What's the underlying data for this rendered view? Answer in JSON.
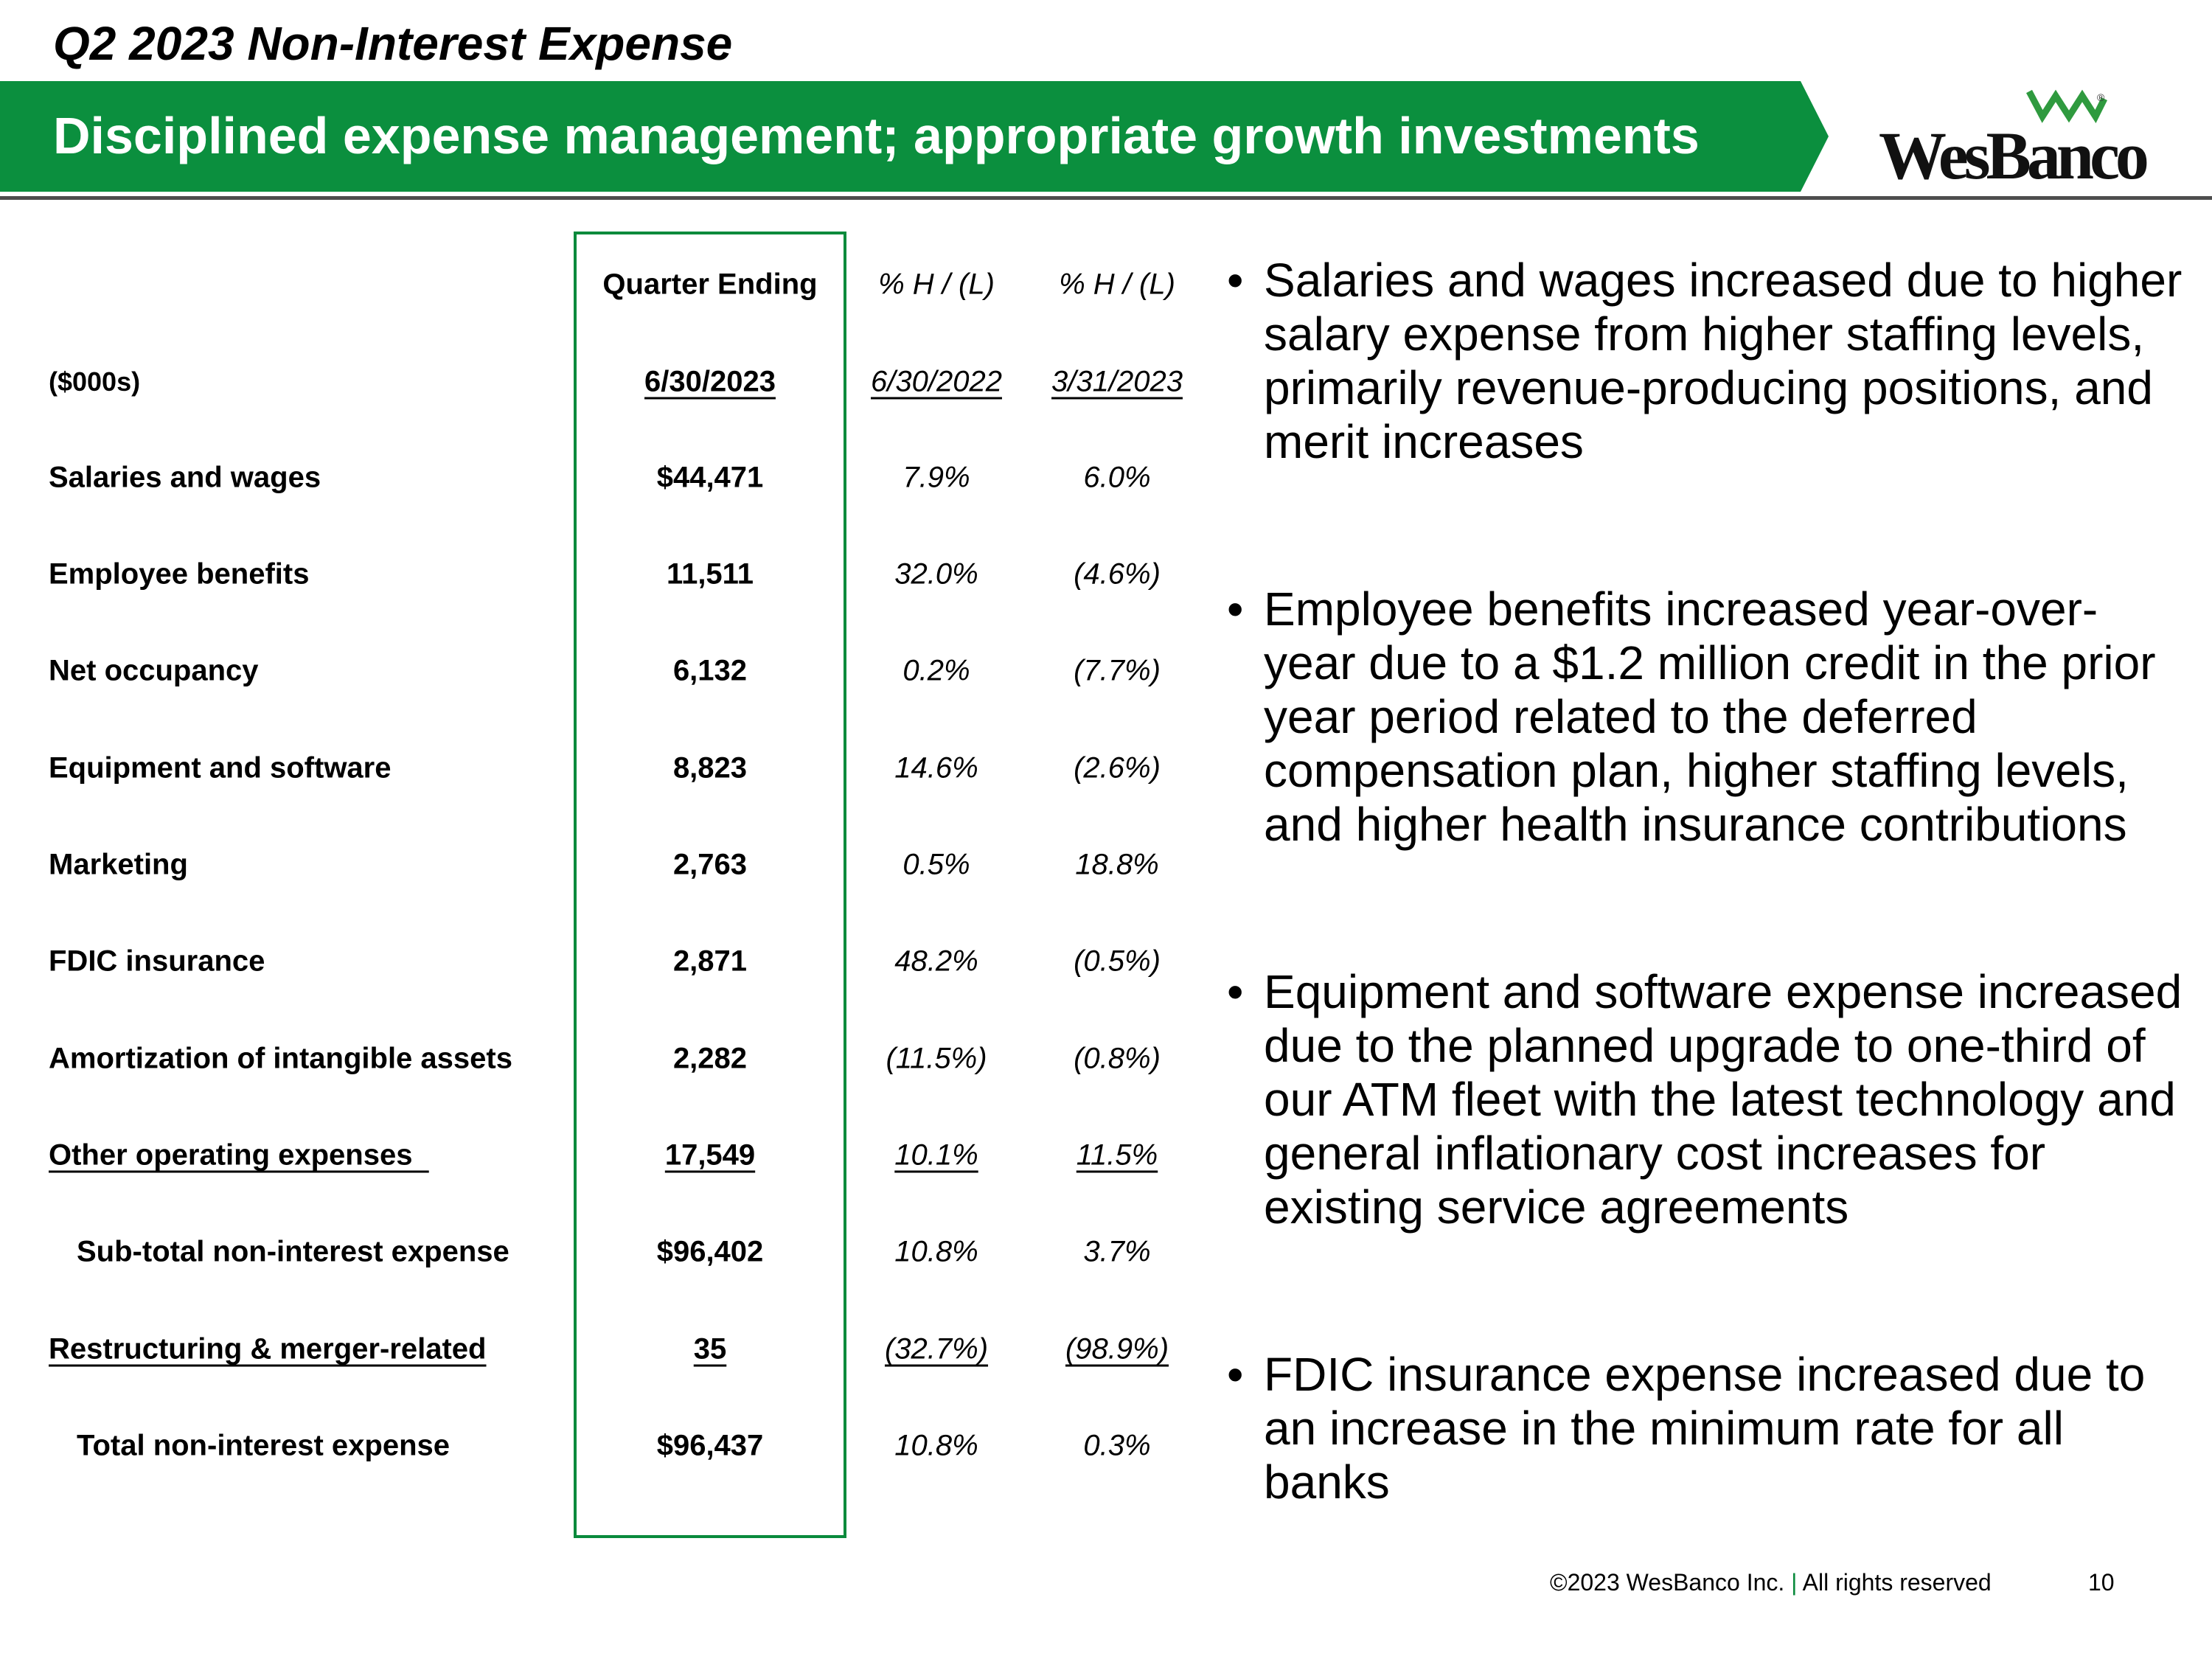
{
  "header": {
    "slide_title": "Q2 2023 Non-Interest Expense",
    "banner_text": "Disciplined expense management; appropriate growth investments",
    "logo_text": "WesBanco",
    "logo_reg": "®"
  },
  "table": {
    "col_headers": {
      "c1_top": "Quarter Ending",
      "c2_top": "% H / (L)",
      "c3_top": "% H / (L)",
      "units": "($000s)",
      "c1_date": "6/30/2023",
      "c2_date": "6/30/2022",
      "c3_date": "3/31/2023"
    },
    "rows": [
      {
        "label": "Salaries and wages",
        "value": "$44,471",
        "yoy": "7.9%",
        "qoq": "6.0%"
      },
      {
        "label": "Employee benefits",
        "value": "11,511",
        "yoy": "32.0%",
        "qoq": "(4.6%)"
      },
      {
        "label": "Net occupancy",
        "value": "6,132",
        "yoy": "0.2%",
        "qoq": "(7.7%)"
      },
      {
        "label": "Equipment and software",
        "value": "8,823",
        "yoy": "14.6%",
        "qoq": "(2.6%)"
      },
      {
        "label": "Marketing",
        "value": "2,763",
        "yoy": "0.5%",
        "qoq": "18.8%"
      },
      {
        "label": "FDIC insurance",
        "value": "2,871",
        "yoy": "48.2%",
        "qoq": "(0.5%)"
      },
      {
        "label": "Amortization of intangible assets",
        "value": "2,282",
        "yoy": "(11.5%)",
        "qoq": "(0.8%)"
      },
      {
        "label": "Other operating expenses",
        "value": "17,549",
        "yoy": "10.1%",
        "qoq": "11.5%"
      },
      {
        "label": "Sub-total non-interest expense",
        "value": "$96,402",
        "yoy": "10.8%",
        "qoq": "3.7%"
      },
      {
        "label": "Restructuring & merger-related",
        "value": "35",
        "yoy": "(32.7%)",
        "qoq": "(98.9%)"
      },
      {
        "label": "Total non-interest expense",
        "value": "$96,437",
        "yoy": "10.8%",
        "qoq": "0.3%"
      }
    ]
  },
  "bullets": [
    "Salaries and wages increased due to higher salary expense from higher staffing levels, primarily revenue-producing positions, and merit increases",
    "Employee benefits increased year-over-year due to a $1.2 million credit in the prior year period related to the deferred compensation plan, higher staffing levels, and higher health insurance contributions",
    "Equipment and software expense increased due to the planned upgrade to one-third of our ATM fleet with the latest technology and general inflationary cost increases for existing service agreements",
    "FDIC insurance expense increased due to an increase in the minimum rate for all banks"
  ],
  "footer": {
    "copyright": "©2023 WesBanco Inc.",
    "separator": "|",
    "rights": "All rights reserved",
    "page_number": "10"
  },
  "colors": {
    "brand_green": "#0a8a3c",
    "banner_green": "#0b8f3e"
  }
}
